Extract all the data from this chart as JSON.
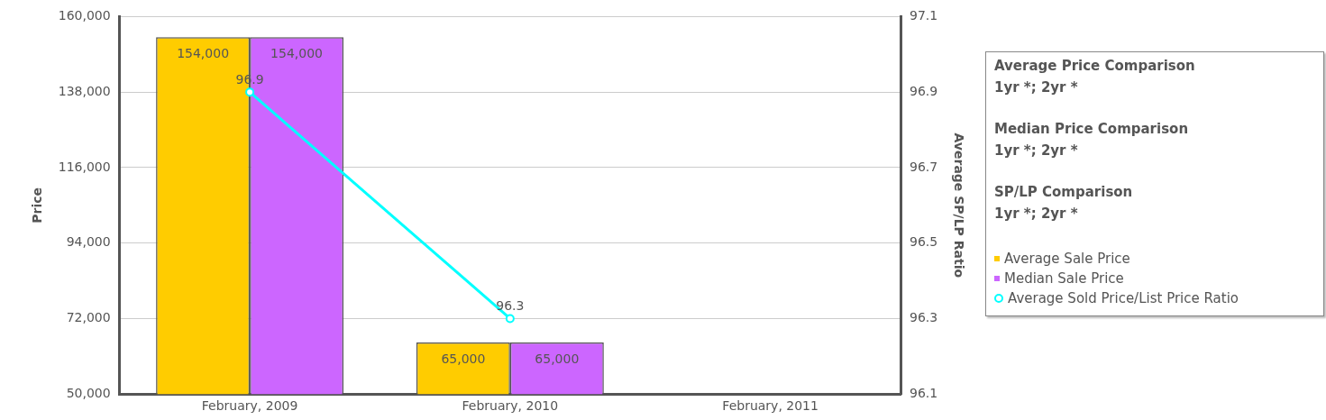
{
  "chart_data": {
    "type": "bar",
    "categories": [
      "February, 2009",
      "February, 2010",
      "February, 2011"
    ],
    "series": [
      {
        "name": "Average Sale Price",
        "color": "#ffcc00",
        "values": [
          154000,
          65000,
          null
        ],
        "value_labels": [
          "154,000",
          "65,000",
          null
        ]
      },
      {
        "name": "Median Sale Price",
        "color": "#cc66ff",
        "values": [
          154000,
          65000,
          null
        ],
        "value_labels": [
          "154,000",
          "65,000",
          null
        ]
      },
      {
        "name": "Average Sold Price/List Price Ratio",
        "type": "line",
        "axis": "y2",
        "color": "#00ffff",
        "values": [
          96.9,
          96.3,
          null
        ],
        "value_labels": [
          "96.9",
          "96.3",
          null
        ]
      }
    ],
    "ylabel": "Price",
    "y2label": "Average SP/LP Ratio",
    "ylim": [
      50000,
      160000
    ],
    "yticks": [
      {
        "value": 50000,
        "label": "50,000"
      },
      {
        "value": 72000,
        "label": "72,000"
      },
      {
        "value": 94000,
        "label": "94,000"
      },
      {
        "value": 116000,
        "label": "116,000"
      },
      {
        "value": 138000,
        "label": "138,000"
      },
      {
        "value": 160000,
        "label": "160,000"
      }
    ],
    "y2lim": [
      96.1,
      97.1
    ],
    "y2ticks": [
      96.1,
      96.3,
      96.5,
      96.7,
      96.9,
      97.1
    ],
    "grid": "y",
    "legend": "right",
    "marker": "circle",
    "annotations": [
      "Average Price Comparison",
      "1yr *; 2yr *",
      "Median Price Comparison",
      "1yr *; 2yr *",
      "SP/LP Comparison",
      "1yr *; 2yr *"
    ]
  }
}
